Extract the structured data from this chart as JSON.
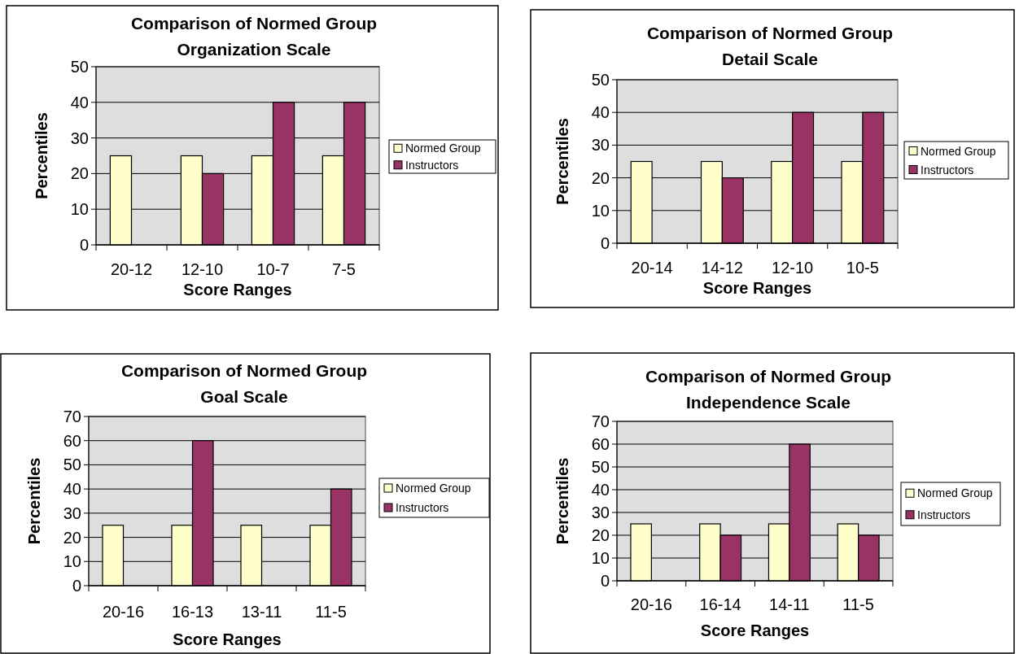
{
  "chart_data": [
    {
      "type": "bar",
      "title": "Comparison of Normed Group\nOrganization Scale",
      "xlabel": "Score Ranges",
      "ylabel": "Percentiles",
      "categories": [
        "20-12",
        "12-10",
        "10-7",
        "7-5"
      ],
      "series": [
        {
          "name": "Normed Group",
          "color": "#ffffcc",
          "values": [
            25,
            25,
            25,
            25
          ]
        },
        {
          "name": "Instructors",
          "color": "#993366",
          "values": [
            null,
            20,
            40,
            40
          ]
        }
      ],
      "ylim": [
        0,
        50
      ],
      "yticks": [
        0,
        10,
        20,
        30,
        40,
        50
      ],
      "grid": "y",
      "legend": "right"
    },
    {
      "type": "bar",
      "title": "Comparison of Normed Group\nDetail Scale",
      "xlabel": "Score Ranges",
      "ylabel": "Percentiles",
      "categories": [
        "20-14",
        "14-12",
        "12-10",
        "10-5"
      ],
      "series": [
        {
          "name": "Normed Group",
          "color": "#ffffcc",
          "values": [
            25,
            25,
            25,
            25
          ]
        },
        {
          "name": "Instructors",
          "color": "#993366",
          "values": [
            null,
            20,
            40,
            40
          ]
        }
      ],
      "ylim": [
        0,
        50
      ],
      "yticks": [
        0,
        10,
        20,
        30,
        40,
        50
      ],
      "grid": "y",
      "legend": "right"
    },
    {
      "type": "bar",
      "title": "Comparison of Normed Group\nGoal Scale",
      "xlabel": "Score Ranges",
      "ylabel": "Percentiles",
      "categories": [
        "20-16",
        "16-13",
        "13-11",
        "11-5"
      ],
      "series": [
        {
          "name": "Normed Group",
          "color": "#ffffcc",
          "values": [
            25,
            25,
            25,
            25
          ]
        },
        {
          "name": "Instructors",
          "color": "#993366",
          "values": [
            null,
            60,
            null,
            40
          ]
        }
      ],
      "ylim": [
        0,
        70
      ],
      "yticks": [
        0,
        10,
        20,
        30,
        40,
        50,
        60,
        70
      ],
      "grid": "y",
      "legend": "right"
    },
    {
      "type": "bar",
      "title": "Comparison of Normed Group\nIndependence Scale",
      "xlabel": "Score Ranges",
      "ylabel": "Percentiles",
      "categories": [
        "20-16",
        "16-14",
        "14-11",
        "11-5"
      ],
      "series": [
        {
          "name": "Normed Group",
          "color": "#ffffcc",
          "values": [
            25,
            25,
            25,
            25
          ]
        },
        {
          "name": "Instructors",
          "color": "#993366",
          "values": [
            null,
            20,
            60,
            20
          ]
        }
      ],
      "ylim": [
        0,
        70
      ],
      "yticks": [
        0,
        10,
        20,
        30,
        40,
        50,
        60,
        70
      ],
      "grid": "y",
      "legend": "right"
    }
  ]
}
